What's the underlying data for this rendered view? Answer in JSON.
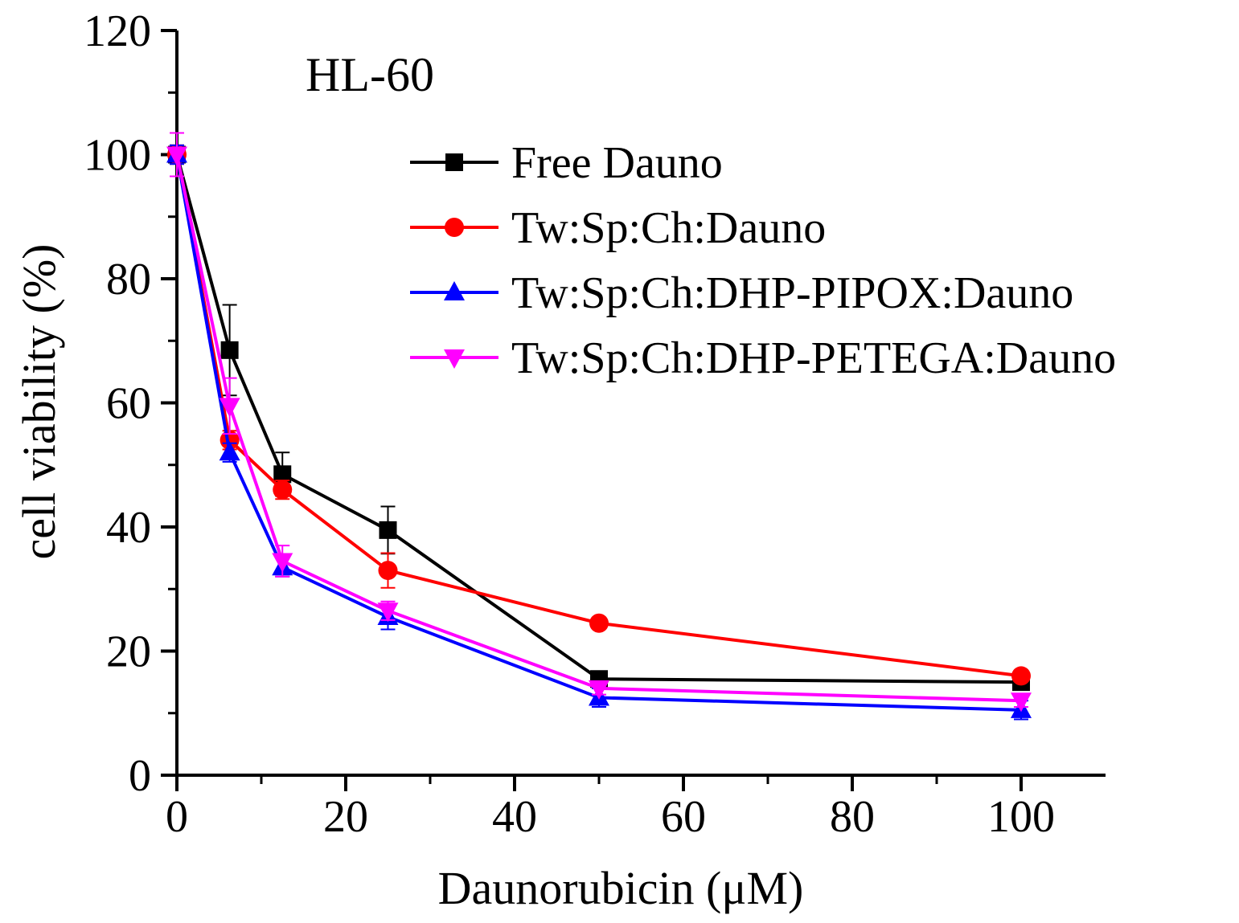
{
  "chart_data": {
    "type": "line",
    "title": "HL-60",
    "xlabel": "Daunorubicin (μM)",
    "ylabel": "cell viability (%)",
    "xlim": [
      0,
      110
    ],
    "ylim": [
      0,
      120
    ],
    "xticks": [
      0,
      20,
      40,
      60,
      80,
      100
    ],
    "yticks": [
      0,
      20,
      40,
      60,
      80,
      100,
      120
    ],
    "x": [
      0,
      6.25,
      12.5,
      25,
      50,
      100
    ],
    "series": [
      {
        "name": "Free Dauno",
        "color": "#000000",
        "marker": "square",
        "values": [
          100,
          68.5,
          48.5,
          39.5,
          15.5,
          15.0
        ],
        "errors": [
          1.5,
          7.3,
          3.5,
          3.8,
          1.0,
          1.0
        ]
      },
      {
        "name": "Tw:Sp:Ch:Dauno",
        "color": "#ff0000",
        "marker": "circle",
        "values": [
          100,
          54.0,
          46.0,
          33.0,
          24.5,
          16.0
        ],
        "errors": [
          1.5,
          1.5,
          1.5,
          2.8,
          0.8,
          0.8
        ]
      },
      {
        "name": "Tw:Sp:Ch:DHP-PIPOX:Dauno",
        "color": "#0000ff",
        "marker": "triangle-up",
        "values": [
          100,
          52.0,
          33.5,
          25.5,
          12.5,
          10.5
        ],
        "errors": [
          1.5,
          1.5,
          1.5,
          2.0,
          1.5,
          1.5
        ]
      },
      {
        "name": "Tw:Sp:Ch:DHP-PETEGA:Dauno",
        "color": "#ff00ff",
        "marker": "triangle-down",
        "values": [
          100,
          59.5,
          34.5,
          26.5,
          14.0,
          12.0
        ],
        "errors": [
          3.5,
          4.5,
          2.5,
          1.5,
          1.0,
          1.0
        ]
      }
    ],
    "legend_position": "top-right"
  }
}
